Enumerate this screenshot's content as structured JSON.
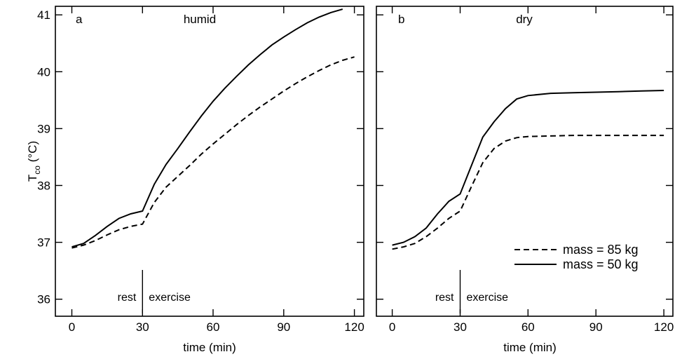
{
  "chart_data": [
    {
      "type": "line",
      "panel": "a",
      "title": "humid",
      "xlabel": "time (min)",
      "ylabel": "T",
      "ylabel_sub": "co",
      "ylabel_unit": " (°C)",
      "xlim": [
        -7,
        124
      ],
      "ylim": [
        35.7,
        41.15
      ],
      "xticks": [
        0,
        30,
        60,
        90,
        120
      ],
      "yticks": [
        36,
        37,
        38,
        39,
        40,
        41
      ],
      "phase_divider_x": 30,
      "phase_labels": [
        "rest",
        "exercise"
      ],
      "series": [
        {
          "name": "mass = 50 kg",
          "style": "solid",
          "x": [
            0,
            5,
            10,
            15,
            20,
            25,
            30,
            35,
            40,
            45,
            50,
            55,
            60,
            65,
            70,
            75,
            80,
            85,
            90,
            95,
            100,
            105,
            110,
            115
          ],
          "y": [
            36.92,
            36.98,
            37.12,
            37.28,
            37.42,
            37.5,
            37.55,
            38.02,
            38.37,
            38.65,
            38.94,
            39.22,
            39.48,
            39.71,
            39.92,
            40.12,
            40.3,
            40.47,
            40.61,
            40.74,
            40.86,
            40.96,
            41.04,
            41.1
          ]
        },
        {
          "name": "mass = 85 kg",
          "style": "dashed",
          "x": [
            0,
            5,
            10,
            15,
            20,
            25,
            30,
            35,
            40,
            45,
            50,
            55,
            60,
            65,
            70,
            75,
            80,
            85,
            90,
            95,
            100,
            105,
            110,
            115,
            120
          ],
          "y": [
            36.9,
            36.95,
            37.03,
            37.13,
            37.22,
            37.28,
            37.32,
            37.7,
            37.97,
            38.16,
            38.35,
            38.55,
            38.73,
            38.9,
            39.07,
            39.23,
            39.38,
            39.52,
            39.66,
            39.79,
            39.91,
            40.02,
            40.12,
            40.2,
            40.26
          ]
        }
      ]
    },
    {
      "type": "line",
      "panel": "b",
      "title": "dry",
      "xlabel": "time (min)",
      "xlim": [
        -7,
        124
      ],
      "ylim": [
        35.7,
        41.15
      ],
      "xticks": [
        0,
        30,
        60,
        90,
        120
      ],
      "yticks": [
        36,
        37,
        38,
        39,
        40,
        41
      ],
      "phase_divider_x": 30,
      "phase_labels": [
        "rest",
        "exercise"
      ],
      "legend": {
        "placement": "bottom-right",
        "entries": [
          {
            "label": "mass = 85 kg",
            "style": "dashed"
          },
          {
            "label": "mass = 50 kg",
            "style": "solid"
          }
        ]
      },
      "series": [
        {
          "name": "mass = 50 kg",
          "style": "solid",
          "x": [
            0,
            5,
            10,
            15,
            20,
            25,
            30,
            35,
            40,
            45,
            50,
            55,
            60,
            70,
            80,
            90,
            100,
            110,
            120
          ],
          "y": [
            36.95,
            37.0,
            37.1,
            37.25,
            37.5,
            37.72,
            37.85,
            38.35,
            38.85,
            39.12,
            39.35,
            39.52,
            39.58,
            39.62,
            39.63,
            39.64,
            39.65,
            39.66,
            39.67
          ]
        },
        {
          "name": "mass = 85 kg",
          "style": "dashed",
          "x": [
            0,
            5,
            10,
            15,
            20,
            25,
            30,
            35,
            40,
            45,
            50,
            55,
            60,
            70,
            80,
            90,
            100,
            110,
            120
          ],
          "y": [
            36.88,
            36.92,
            36.98,
            37.1,
            37.25,
            37.42,
            37.55,
            37.98,
            38.4,
            38.65,
            38.78,
            38.84,
            38.86,
            38.87,
            38.88,
            38.88,
            38.88,
            38.88,
            38.88
          ]
        }
      ]
    }
  ]
}
